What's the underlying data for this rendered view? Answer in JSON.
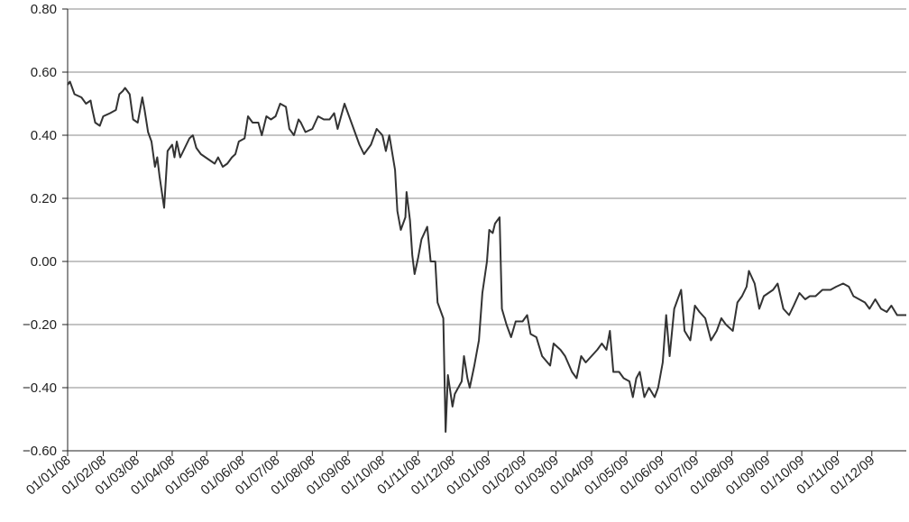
{
  "chart_data": {
    "type": "line",
    "color": "#333333",
    "grid": true,
    "xlim": [
      "01/01/08",
      "31/12/09"
    ],
    "xticks": [
      "01/01/08",
      "01/02/08",
      "01/03/08",
      "01/04/08",
      "01/05/08",
      "01/06/08",
      "01/07/08",
      "01/08/08",
      "01/09/08",
      "01/10/08",
      "01/11/08",
      "01/12/08",
      "01/01/09",
      "01/02/09",
      "01/03/09",
      "01/04/09",
      "01/05/09",
      "01/06/09",
      "01/07/09",
      "01/08/09",
      "01/09/09",
      "01/10/09",
      "01/11/09",
      "01/12/09"
    ],
    "ylim": [
      -0.6,
      0.8
    ],
    "yticks": [
      {
        "value": -0.6,
        "label": "−0.60"
      },
      {
        "value": -0.4,
        "label": "−0.40"
      },
      {
        "value": -0.2,
        "label": "−0.20"
      },
      {
        "value": 0,
        "label": "0.00"
      },
      {
        "value": 0.2,
        "label": "0.20"
      },
      {
        "value": 0.4,
        "label": "0.40"
      },
      {
        "value": 0.6,
        "label": "0.60"
      },
      {
        "value": 0.8,
        "label": "0.80"
      }
    ],
    "x": [
      "01/01/08",
      "03/01/08",
      "07/01/08",
      "13/01/08",
      "17/01/08",
      "21/01/08",
      "22/01/08",
      "25/01/08",
      "29/01/08",
      "01/02/08",
      "07/02/08",
      "12/02/08",
      "15/02/08",
      "18/02/08",
      "20/02/08",
      "24/02/08",
      "27/02/08",
      "02/03/08",
      "06/03/08",
      "08/03/08",
      "11/03/08",
      "14/03/08",
      "17/03/08",
      "19/03/08",
      "21/03/08",
      "25/03/08",
      "28/03/08",
      "01/04/08",
      "03/04/08",
      "05/04/08",
      "08/04/08",
      "12/04/08",
      "16/04/08",
      "19/04/08",
      "22/04/08",
      "26/04/08",
      "30/04/08",
      "04/05/08",
      "08/05/08",
      "11/05/08",
      "15/05/08",
      "19/05/08",
      "23/05/08",
      "26/05/08",
      "29/05/08",
      "03/06/08",
      "06/06/08",
      "10/06/08",
      "15/06/08",
      "18/06/08",
      "22/06/08",
      "26/06/08",
      "30/06/08",
      "04/07/08",
      "09/07/08",
      "12/07/08",
      "16/07/08",
      "20/07/08",
      "22/07/08",
      "26/07/08",
      "01/08/08",
      "06/08/08",
      "11/08/08",
      "16/08/08",
      "20/08/08",
      "23/08/08",
      "29/08/08",
      "06/09/08",
      "11/09/08",
      "15/09/08",
      "21/09/08",
      "26/09/08",
      "01/10/08",
      "04/10/08",
      "07/10/08",
      "12/10/08",
      "14/10/08",
      "17/10/08",
      "21/10/08",
      "22/10/08",
      "25/10/08",
      "27/10/08",
      "29/10/08",
      "01/11/08",
      "04/11/08",
      "09/11/08",
      "12/11/08",
      "16/11/08",
      "18/11/08",
      "23/11/08",
      "25/11/08",
      "27/11/08",
      "01/12/08",
      "03/12/08",
      "09/12/08",
      "11/12/08",
      "14/12/08",
      "16/12/08",
      "20/12/08",
      "24/12/08",
      "27/12/08",
      "31/12/08",
      "02/01/09",
      "05/01/09",
      "07/01/09",
      "11/01/09",
      "13/01/09",
      "17/01/09",
      "21/01/09",
      "25/01/09",
      "31/01/09",
      "04/02/09",
      "07/02/09",
      "12/02/09",
      "17/02/09",
      "24/02/09",
      "27/02/09",
      "05/03/09",
      "09/03/09",
      "15/03/09",
      "19/03/09",
      "23/03/09",
      "27/03/09",
      "01/04/09",
      "06/04/09",
      "10/04/09",
      "14/04/09",
      "17/04/09",
      "20/04/09",
      "25/04/09",
      "29/04/09",
      "04/05/09",
      "07/05/09",
      "10/05/09",
      "13/05/09",
      "17/05/09",
      "21/05/09",
      "26/05/09",
      "29/05/09",
      "02/06/09",
      "05/06/09",
      "08/06/09",
      "12/06/09",
      "15/06/09",
      "18/06/09",
      "21/06/09",
      "26/06/09",
      "30/06/09",
      "04/07/09",
      "09/07/09",
      "14/07/09",
      "19/07/09",
      "23/07/09",
      "27/07/09",
      "02/08/09",
      "06/08/09",
      "10/08/09",
      "14/08/09",
      "16/08/09",
      "21/08/09",
      "25/08/09",
      "29/08/09",
      "02/09/09",
      "06/09/09",
      "10/09/09",
      "15/09/09",
      "20/09/09",
      "24/09/09",
      "29/09/09",
      "04/10/09",
      "08/10/09",
      "13/10/09",
      "19/10/09",
      "26/10/09",
      "31/10/09",
      "06/11/09",
      "11/11/09",
      "15/11/09",
      "20/11/09",
      "25/11/09",
      "29/11/09",
      "04/12/09",
      "09/12/09",
      "14/12/09",
      "18/12/09",
      "23/12/09",
      "28/12/09",
      "31/12/09"
    ],
    "values": [
      0.56,
      0.57,
      0.53,
      0.52,
      0.5,
      0.51,
      0.49,
      0.44,
      0.43,
      0.46,
      0.47,
      0.48,
      0.53,
      0.54,
      0.55,
      0.53,
      0.45,
      0.44,
      0.52,
      0.48,
      0.41,
      0.38,
      0.3,
      0.33,
      0.27,
      0.17,
      0.35,
      0.37,
      0.33,
      0.38,
      0.33,
      0.36,
      0.39,
      0.4,
      0.36,
      0.34,
      0.33,
      0.32,
      0.31,
      0.33,
      0.3,
      0.31,
      0.33,
      0.34,
      0.38,
      0.39,
      0.46,
      0.44,
      0.44,
      0.4,
      0.46,
      0.45,
      0.46,
      0.5,
      0.49,
      0.42,
      0.4,
      0.45,
      0.44,
      0.41,
      0.42,
      0.46,
      0.45,
      0.45,
      0.47,
      0.42,
      0.5,
      0.42,
      0.37,
      0.34,
      0.37,
      0.42,
      0.4,
      0.35,
      0.4,
      0.29,
      0.16,
      0.1,
      0.14,
      0.22,
      0.13,
      0.02,
      -0.04,
      0.01,
      0.07,
      0.11,
      0.0,
      0.0,
      -0.13,
      -0.18,
      -0.54,
      -0.36,
      -0.46,
      -0.42,
      -0.38,
      -0.3,
      -0.37,
      -0.4,
      -0.33,
      -0.25,
      -0.1,
      0.0,
      0.1,
      0.09,
      0.12,
      0.14,
      -0.15,
      -0.2,
      -0.24,
      -0.19,
      -0.19,
      -0.17,
      -0.23,
      -0.24,
      -0.3,
      -0.33,
      -0.26,
      -0.28,
      -0.3,
      -0.35,
      -0.37,
      -0.3,
      -0.32,
      -0.3,
      -0.28,
      -0.26,
      -0.28,
      -0.22,
      -0.35,
      -0.35,
      -0.37,
      -0.38,
      -0.43,
      -0.37,
      -0.35,
      -0.43,
      -0.4,
      -0.43,
      -0.4,
      -0.32,
      -0.17,
      -0.3,
      -0.15,
      -0.12,
      -0.09,
      -0.22,
      -0.25,
      -0.14,
      -0.16,
      -0.18,
      -0.25,
      -0.22,
      -0.18,
      -0.2,
      -0.22,
      -0.13,
      -0.11,
      -0.08,
      -0.03,
      -0.07,
      -0.15,
      -0.11,
      -0.1,
      -0.09,
      -0.07,
      -0.15,
      -0.17,
      -0.14,
      -0.1,
      -0.12,
      -0.11,
      -0.11,
      -0.09,
      -0.09,
      -0.08,
      -0.07,
      -0.08,
      -0.11,
      -0.12,
      -0.13,
      -0.15,
      -0.12,
      -0.15,
      -0.16,
      -0.14,
      -0.17,
      -0.17,
      -0.17
    ]
  }
}
